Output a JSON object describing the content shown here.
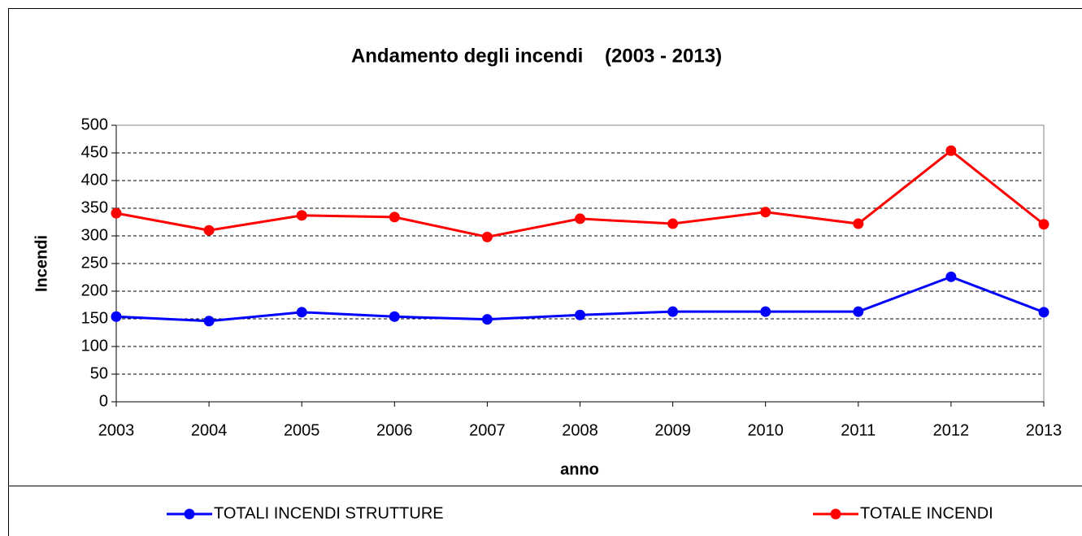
{
  "chart_data": {
    "type": "line",
    "title": "Andamento degli incendi    (2003 - 2013)",
    "x_label": "anno",
    "y_label": "Incendi",
    "categories": [
      "2003",
      "2004",
      "2005",
      "2006",
      "2007",
      "2008",
      "2009",
      "2010",
      "2011",
      "2012",
      "2013"
    ],
    "series": [
      {
        "name": "TOTALI INCENDI STRUTTURE",
        "color": "#0000ff",
        "values": [
          154,
          146,
          162,
          154,
          149,
          157,
          163,
          163,
          163,
          226,
          162
        ]
      },
      {
        "name": "TOTALE INCENDI",
        "color": "#ff0000",
        "values": [
          341,
          310,
          337,
          334,
          298,
          331,
          322,
          343,
          322,
          454,
          321
        ]
      }
    ],
    "ylim": [
      0,
      500
    ],
    "yticks": [
      0,
      50,
      100,
      150,
      200,
      250,
      300,
      350,
      400,
      450,
      500
    ],
    "grid": true,
    "legend": "bottom"
  }
}
